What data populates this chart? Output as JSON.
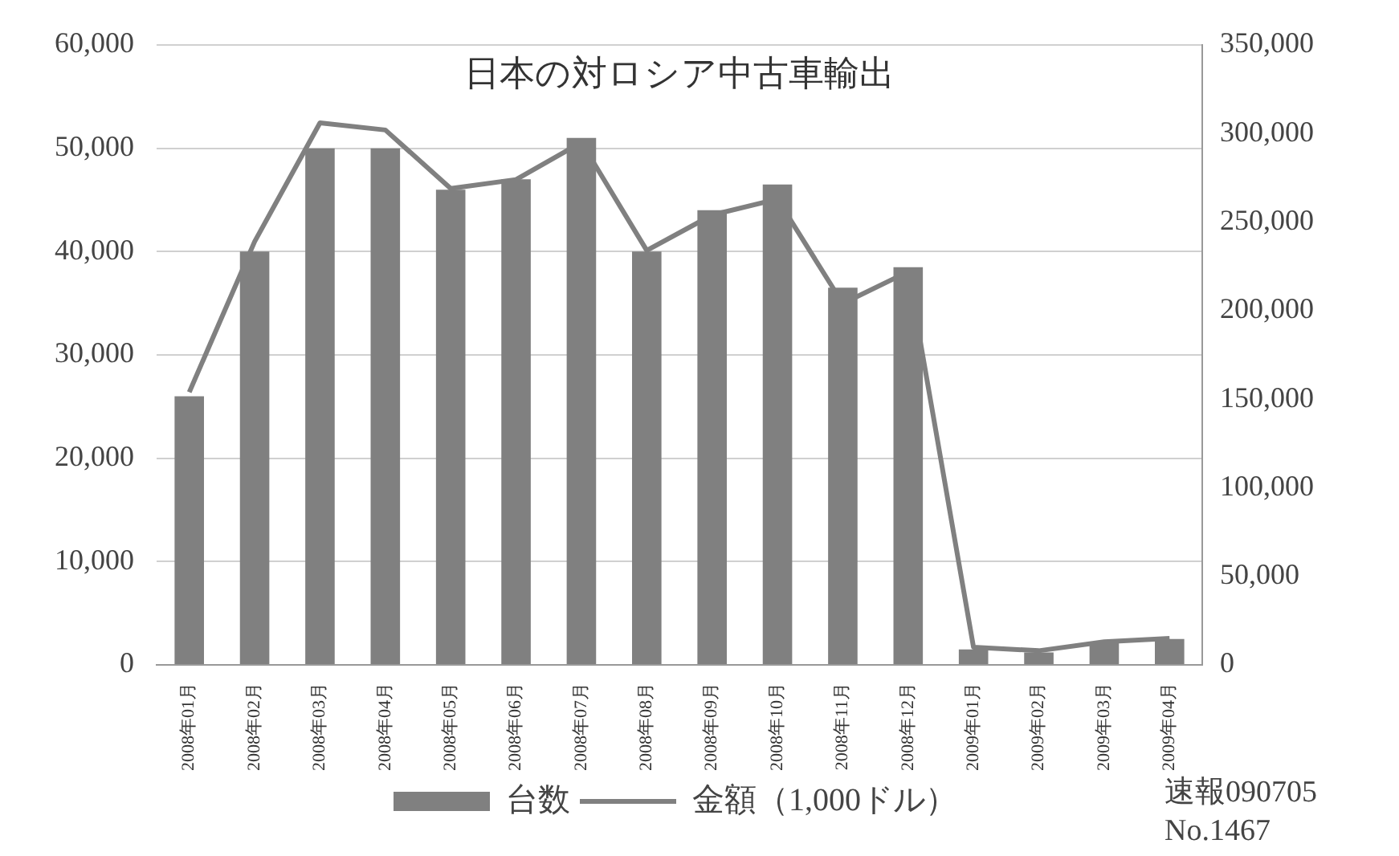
{
  "chart_data": {
    "type": "bar",
    "title": "日本の対ロシア中古車輸出",
    "categories": [
      "2008年01月",
      "2008年02月",
      "2008年03月",
      "2008年04月",
      "2008年05月",
      "2008年06月",
      "2008年07月",
      "2008年08月",
      "2008年09月",
      "2008年10月",
      "2008年11月",
      "2008年12月",
      "2009年01月",
      "2009年02月",
      "2009年03月",
      "2009年04月"
    ],
    "series": [
      {
        "name": "台数",
        "color": "#808080",
        "values": [
          26000,
          40000,
          50000,
          50000,
          46000,
          47000,
          51000,
          40000,
          44000,
          46500,
          36500,
          38500,
          1500,
          1200,
          2200,
          2500
        ]
      },
      {
        "name": "金額（1,000ドル）",
        "type": "line",
        "axis": "y2",
        "color": "#808080",
        "values": [
          154000,
          239000,
          306000,
          302000,
          269000,
          274000,
          295000,
          234000,
          254000,
          263000,
          204000,
          222000,
          10000,
          8000,
          13000,
          15000
        ]
      }
    ],
    "ylim": [
      0,
      60000
    ],
    "yticks": [
      0,
      {
        "value": 10000,
        "label": "10,000"
      },
      {
        "value": 20000,
        "label": "20,000"
      },
      {
        "value": 30000,
        "label": "30,000"
      },
      {
        "value": 40000,
        "label": "40,000"
      },
      {
        "value": 50000,
        "label": "50,000"
      },
      {
        "value": 60000,
        "label": "60,000"
      }
    ],
    "y2lim": [
      0,
      350000
    ],
    "y2ticks": [
      0,
      {
        "value": 50000,
        "label": "50,000"
      },
      {
        "value": 100000,
        "label": "100,000"
      },
      {
        "value": 150000,
        "label": "150,000"
      },
      {
        "value": 200000,
        "label": "200,000"
      },
      {
        "value": 250000,
        "label": "250,000"
      },
      {
        "value": 300000,
        "label": "300,000"
      },
      {
        "value": 350000,
        "label": "350,000"
      }
    ],
    "grid": "y",
    "legend": "bottom",
    "marker": "none",
    "annotations": [
      "速報090705",
      "No.1467"
    ]
  }
}
